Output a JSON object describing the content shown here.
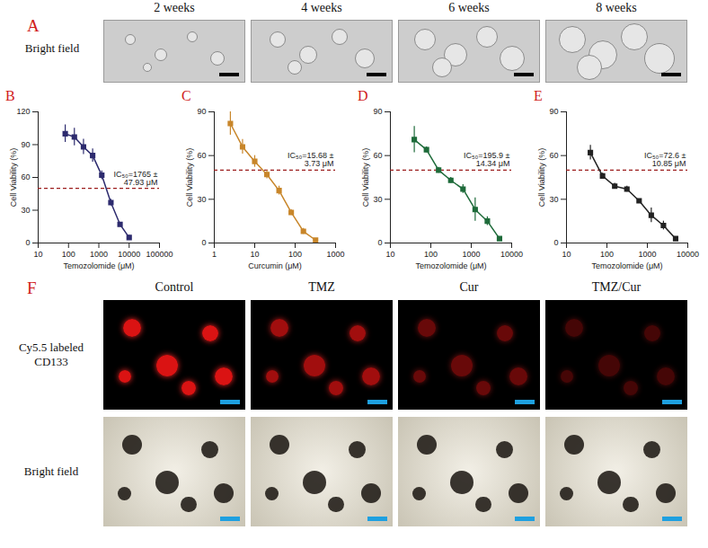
{
  "panel_a": {
    "letter": "A",
    "row_label": "Bright field",
    "columns": [
      "2 weeks",
      "4 weeks",
      "6 weeks",
      "8 weeks"
    ]
  },
  "chart_data": [
    {
      "letter": "B",
      "type": "line",
      "x_label": "Temozolomide (μM)",
      "y_label": "Cell Viability (%)",
      "annotation": "IC₅₀=1765 ± 47.93 μM",
      "hline": 50,
      "log": "x",
      "grid": false,
      "color": "#2d2b6e",
      "marker": "square",
      "x": [
        78,
        156,
        312,
        625,
        1250,
        2500,
        5000,
        10000
      ],
      "values": [
        100,
        97,
        88,
        80,
        62,
        37,
        17,
        5
      ],
      "errors": [
        8,
        8,
        7,
        6,
        4,
        3,
        2,
        2
      ],
      "xlim": [
        10,
        100000
      ],
      "xticks": [
        10,
        100,
        1000,
        10000,
        100000
      ],
      "ylim": [
        0,
        120
      ],
      "yticks": [
        0,
        30,
        60,
        90,
        120
      ]
    },
    {
      "letter": "C",
      "type": "line",
      "x_label": "Curcumin (μM)",
      "y_label": "Cell Viability (%)",
      "annotation": "IC₅₀=15.68 ± 3.73 μM",
      "hline": 50,
      "log": "x",
      "grid": false,
      "color": "#c8862a",
      "marker": "square",
      "x": [
        2.5,
        5,
        10,
        20,
        40,
        80,
        160,
        320
      ],
      "values": [
        82,
        66,
        56,
        47,
        36,
        21,
        8,
        2
      ],
      "errors": [
        8,
        5,
        4,
        3,
        3,
        2,
        2,
        1
      ],
      "xlim": [
        1,
        1000
      ],
      "xticks": [
        1,
        10,
        100,
        1000
      ],
      "ylim": [
        0,
        90
      ],
      "yticks": [
        0,
        30,
        60,
        90
      ]
    },
    {
      "letter": "D",
      "type": "line",
      "x_label": "Temozolomide (μM)",
      "y_label": "Cell Viability (%)",
      "annotation": "IC₅₀=195.9 ± 14.34 μM",
      "hline": 50,
      "log": "x",
      "grid": false,
      "color": "#1e6b3a",
      "marker": "square",
      "x": [
        39,
        78,
        156,
        312,
        625,
        1250,
        2500,
        5000
      ],
      "values": [
        71,
        64,
        50,
        43,
        37,
        23,
        15,
        3
      ],
      "errors": [
        9,
        2,
        2,
        2,
        3,
        8,
        3,
        1
      ],
      "xlim": [
        10,
        10000
      ],
      "xticks": [
        10,
        100,
        1000,
        10000
      ],
      "ylim": [
        0,
        90
      ],
      "yticks": [
        0,
        30,
        60,
        90
      ]
    },
    {
      "letter": "E",
      "type": "line",
      "x_label": "Temozolomide (μM)",
      "y_label": "Cell Viability (%)",
      "annotation": "IC₅₀=72.6 ± 10.85 μM",
      "hline": 50,
      "log": "x",
      "grid": false,
      "color": "#222222",
      "marker": "square",
      "x": [
        39,
        78,
        156,
        312,
        625,
        1250,
        2500,
        5000
      ],
      "values": [
        62,
        46,
        39,
        37,
        29,
        19,
        12,
        3
      ],
      "errors": [
        5,
        2,
        2,
        2,
        1,
        5,
        3,
        1
      ],
      "xlim": [
        10,
        10000
      ],
      "xticks": [
        10,
        100,
        1000,
        10000
      ],
      "ylim": [
        0,
        90
      ],
      "yticks": [
        0,
        30,
        60,
        90
      ]
    }
  ],
  "panel_f": {
    "letter": "F",
    "columns": [
      "Control",
      "TMZ",
      "Cur",
      "TMZ/Cur"
    ],
    "rows": [
      "Cy5.5 labeled CD133",
      "Bright field"
    ]
  }
}
